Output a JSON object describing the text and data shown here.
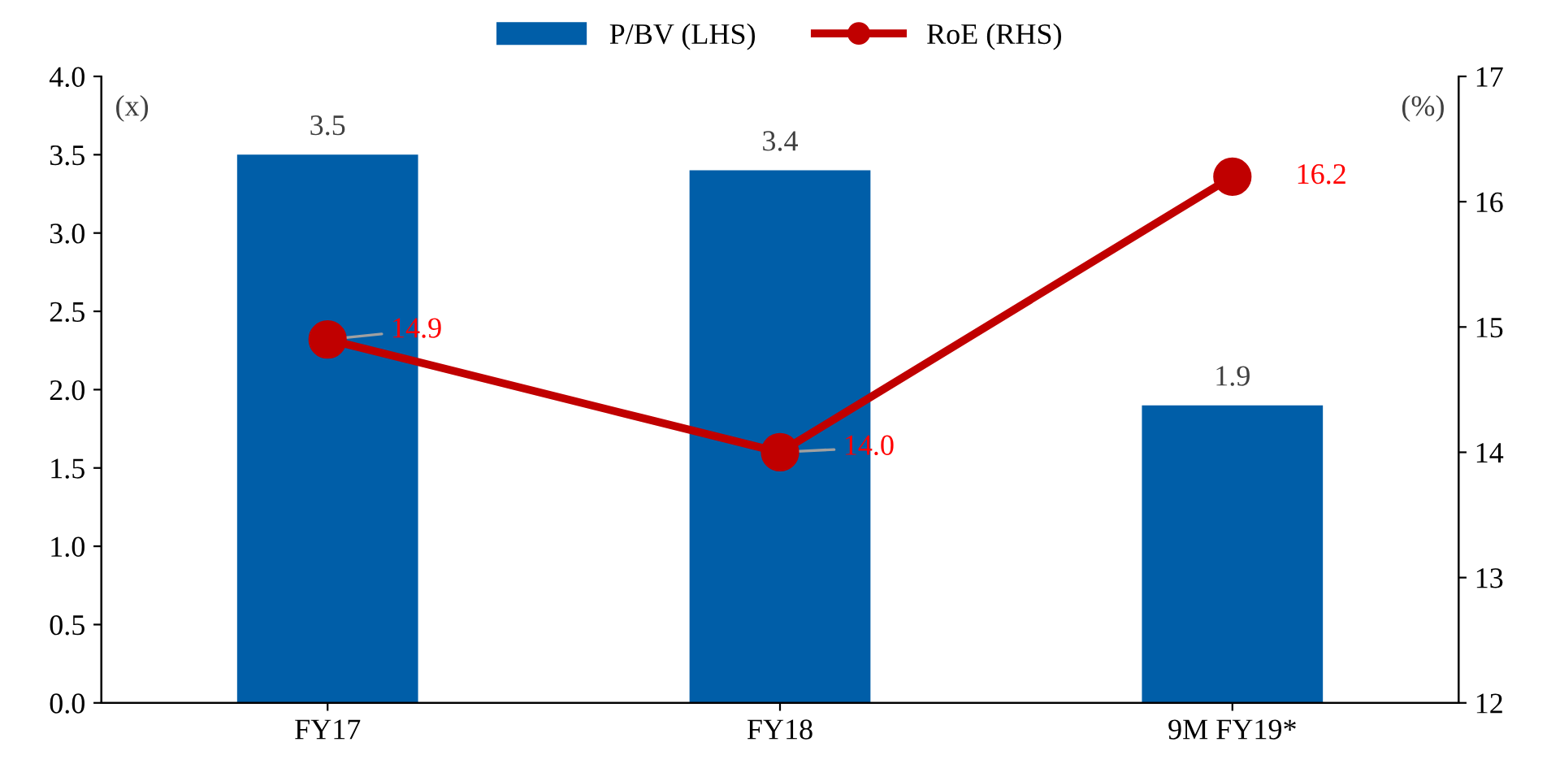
{
  "chart_data": {
    "type": "bar",
    "categories": [
      "FY17",
      "FY18",
      "9M FY19*"
    ],
    "series": [
      {
        "name": "P/BV (LHS)",
        "color": "#005ea8",
        "values": [
          3.5,
          3.4,
          1.9
        ]
      },
      {
        "name": "RoE (RHS)",
        "type": "line",
        "axis": "y2",
        "color": "#c00000",
        "values": [
          14.9,
          14.0,
          16.2
        ],
        "value_labels": [
          "14.9",
          "14.0",
          "16.2"
        ],
        "marker": "circle"
      }
    ],
    "data_labels": true,
    "ylim": [
      0,
      4
    ],
    "yticks": [
      {
        "value": 0,
        "label": "0.0"
      },
      {
        "value": 0.5,
        "label": "0.5"
      },
      {
        "value": 1,
        "label": "1.0"
      },
      {
        "value": 1.5,
        "label": "1.5"
      },
      {
        "value": 2,
        "label": "2.0"
      },
      {
        "value": 2.5,
        "label": "2.5"
      },
      {
        "value": 3,
        "label": "3.0"
      },
      {
        "value": 3.5,
        "label": "3.5"
      },
      {
        "value": 4,
        "label": "4.0"
      }
    ],
    "y2lim": [
      12,
      17
    ],
    "y2ticks": [
      12,
      13,
      14,
      15,
      16,
      17
    ],
    "annotations": [
      "(x)",
      "(%)"
    ],
    "grid": false,
    "legend": "top"
  }
}
